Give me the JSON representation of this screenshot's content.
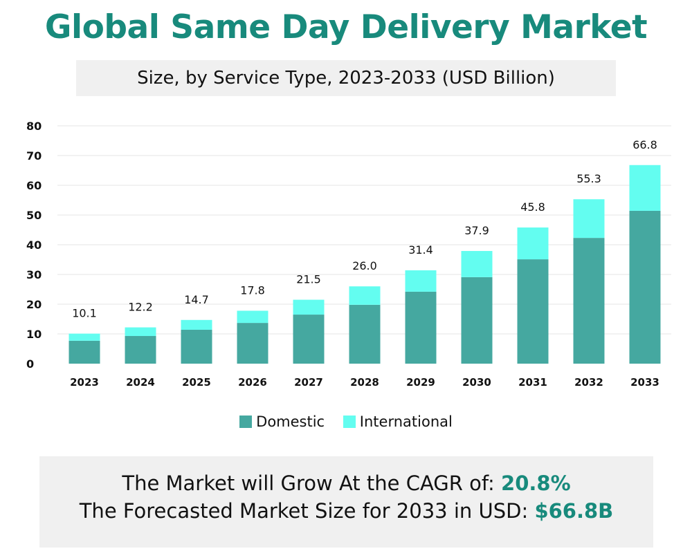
{
  "title": "Global Same Day Delivery Market",
  "subtitle": "Size, by Service Type, 2023-2033 (USD Billion)",
  "chart_data": {
    "type": "bar",
    "stacked": true,
    "categories": [
      "2023",
      "2024",
      "2025",
      "2026",
      "2027",
      "2028",
      "2029",
      "2030",
      "2031",
      "2032",
      "2033"
    ],
    "series": [
      {
        "name": "Domestic",
        "color": "#45a8a0",
        "values": [
          7.7,
          9.3,
          11.4,
          13.7,
          16.5,
          19.8,
          24.2,
          29.1,
          35.1,
          42.3,
          51.4
        ]
      },
      {
        "name": "International",
        "color": "#63fdf0",
        "values": [
          2.4,
          2.9,
          3.3,
          4.1,
          5.0,
          6.2,
          7.2,
          8.8,
          10.7,
          13.0,
          15.4
        ]
      }
    ],
    "totals_labels": [
      "10.1",
      "12.2",
      "14.7",
      "17.8",
      "21.5",
      "26.0",
      "31.4",
      "37.9",
      "45.8",
      "55.3",
      "66.8"
    ],
    "yticks": [
      0,
      10,
      20,
      30,
      40,
      50,
      60,
      70,
      80
    ],
    "ylim": [
      0,
      80
    ],
    "grid": true,
    "legend": "bottom"
  },
  "summary": {
    "cagr_label": "The Market will Grow At the CAGR of: ",
    "cagr_value": "20.8%",
    "forecast_label": "The Forecasted Market Size for 2033 in USD: ",
    "forecast_value": "$66.8B"
  }
}
